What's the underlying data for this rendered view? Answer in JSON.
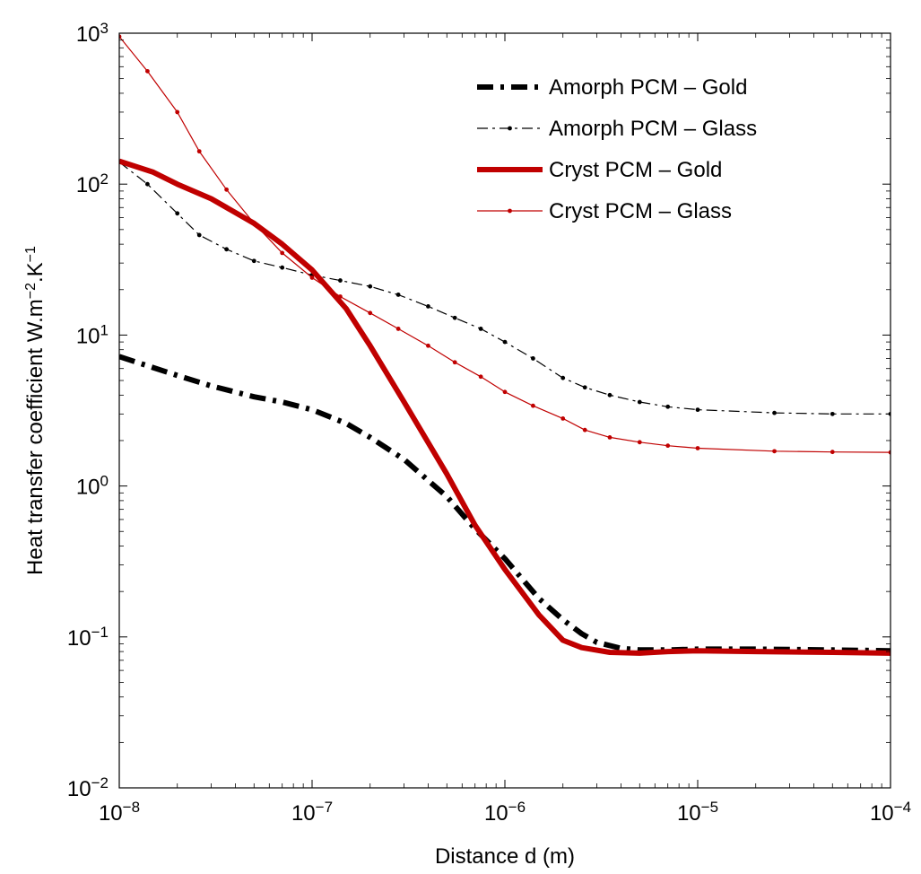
{
  "chart_data": {
    "type": "line",
    "xlabel": "Distance d (m)",
    "ylabel": {
      "base": "Heat transfer coefficient W.m",
      "exp1": "−2",
      "mid": ".K",
      "exp2": "−1"
    },
    "x_scale": "log",
    "y_scale": "log",
    "xlim": [
      1e-08,
      0.0001
    ],
    "ylim": [
      0.01,
      1000
    ],
    "x_ticks": [
      {
        "value": 1e-08,
        "base": "10",
        "exp": "−8"
      },
      {
        "value": 1e-07,
        "base": "10",
        "exp": "−7"
      },
      {
        "value": 1e-06,
        "base": "10",
        "exp": "−6"
      },
      {
        "value": 1e-05,
        "base": "10",
        "exp": "−5"
      },
      {
        "value": 0.0001,
        "base": "10",
        "exp": "−4"
      }
    ],
    "y_ticks": [
      {
        "value": 0.01,
        "base": "10",
        "exp": "−2"
      },
      {
        "value": 0.1,
        "base": "10",
        "exp": "−1"
      },
      {
        "value": 1,
        "base": "10",
        "exp": "0"
      },
      {
        "value": 10,
        "base": "10",
        "exp": "1"
      },
      {
        "value": 100,
        "base": "10",
        "exp": "2"
      },
      {
        "value": 1000,
        "base": "10",
        "exp": "3"
      }
    ],
    "grid": false,
    "legend_position": "top-right",
    "series": [
      {
        "name": "Amorph PCM – Gold",
        "color": "#000000",
        "style": "dash-dot-thick",
        "x": [
          1e-08,
          2e-08,
          3e-08,
          5e-08,
          7e-08,
          1e-07,
          1.5e-07,
          2e-07,
          3e-07,
          5e-07,
          7e-07,
          1e-06,
          1.5e-06,
          2e-06,
          2.5e-06,
          3e-06,
          4e-06,
          5e-06,
          7e-06,
          1e-05,
          2e-05,
          5e-05,
          0.0001
        ],
        "y": [
          7.2,
          5.4,
          4.6,
          3.9,
          3.6,
          3.2,
          2.6,
          2.1,
          1.5,
          0.85,
          0.52,
          0.33,
          0.18,
          0.13,
          0.105,
          0.092,
          0.084,
          0.082,
          0.082,
          0.083,
          0.083,
          0.082,
          0.081
        ]
      },
      {
        "name": "Amorph PCM – Glass",
        "color": "#000000",
        "style": "dash-dot-thin-markers",
        "x": [
          1e-08,
          1.4e-08,
          2e-08,
          2.6e-08,
          3.6e-08,
          5e-08,
          7e-08,
          1e-07,
          1.4e-07,
          2e-07,
          2.8e-07,
          4e-07,
          5.5e-07,
          7.5e-07,
          1e-06,
          1.4e-06,
          2e-06,
          2.6e-06,
          3.5e-06,
          5e-06,
          7e-06,
          1e-05,
          2.5e-05,
          5e-05,
          0.0001
        ],
        "y": [
          140,
          100,
          64,
          46,
          37,
          31,
          28,
          25,
          23,
          21,
          18.5,
          15.5,
          13,
          11,
          9,
          7,
          5.2,
          4.5,
          4.0,
          3.6,
          3.35,
          3.2,
          3.05,
          3.0,
          3.0
        ]
      },
      {
        "name": "Cryst PCM – Gold",
        "color": "#c00000",
        "style": "solid-thick",
        "x": [
          1e-08,
          1.5e-08,
          2e-08,
          3e-08,
          5e-08,
          7e-08,
          1e-07,
          1.5e-07,
          2e-07,
          3e-07,
          5e-07,
          7e-07,
          1e-06,
          1.5e-06,
          2e-06,
          2.5e-06,
          3.5e-06,
          5e-06,
          7e-06,
          1e-05,
          2e-05,
          5e-05,
          0.0001
        ],
        "y": [
          142,
          120,
          100,
          80,
          55,
          40,
          27,
          15,
          8.5,
          3.6,
          1.2,
          0.55,
          0.28,
          0.14,
          0.095,
          0.085,
          0.079,
          0.078,
          0.08,
          0.081,
          0.08,
          0.079,
          0.078
        ]
      },
      {
        "name": "Cryst PCM – Glass",
        "color": "#c00000",
        "style": "solid-thin-markers",
        "x": [
          1e-08,
          1.4e-08,
          2e-08,
          2.6e-08,
          3.6e-08,
          5e-08,
          7e-08,
          1e-07,
          1.4e-07,
          2e-07,
          2.8e-07,
          4e-07,
          5.5e-07,
          7.5e-07,
          1e-06,
          1.4e-06,
          2e-06,
          2.6e-06,
          3.5e-06,
          5e-06,
          7e-06,
          1e-05,
          2.5e-05,
          5e-05,
          0.0001
        ],
        "y": [
          950,
          560,
          300,
          165,
          92,
          55,
          35,
          24,
          18,
          14,
          11,
          8.5,
          6.6,
          5.3,
          4.2,
          3.4,
          2.8,
          2.35,
          2.1,
          1.95,
          1.85,
          1.78,
          1.7,
          1.68,
          1.67
        ]
      }
    ]
  }
}
